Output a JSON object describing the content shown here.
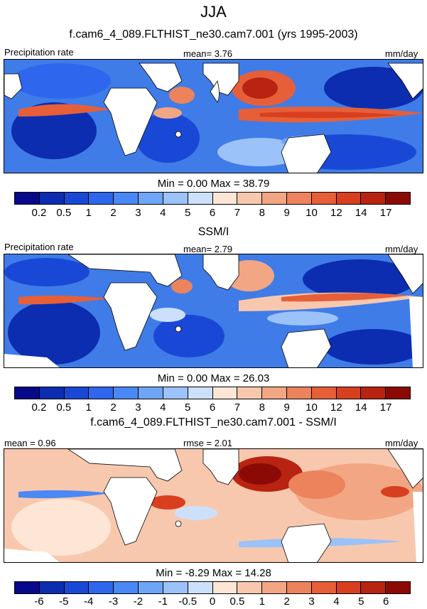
{
  "figure": {
    "title": "JJA"
  },
  "panels": [
    {
      "id": "model",
      "title": "f.cam6_4_089.FLTHIST_ne30.cam7.001 (yrs 1995-2003)",
      "left_label": "Precipitation rate",
      "center_label": "mean=   3.76",
      "right_label": "mm/day",
      "minmax": "Min =   0.00 Max =  38.79",
      "colorbar_colors": [
        "#08088a",
        "#0c2db0",
        "#1a48d6",
        "#2e67ee",
        "#4a88f5",
        "#6fa5f7",
        "#9bc2f9",
        "#cde0fb",
        "#fde6d6",
        "#f8c8ae",
        "#f2a683",
        "#ec835c",
        "#e65f39",
        "#d83f1e",
        "#b82411",
        "#8c0a05"
      ],
      "colorbar_labels": [
        "0.2",
        "0.5",
        "1",
        "2",
        "3",
        "4",
        "5",
        "6",
        "7",
        "8",
        "9",
        "10",
        "12",
        "14",
        "17"
      ]
    },
    {
      "id": "obs",
      "title": "SSM/I",
      "left_label": "Precipitation rate",
      "center_label": "mean=   2.79",
      "right_label": "mm/day",
      "minmax": "Min =   0.00 Max =  26.03",
      "colorbar_colors": [
        "#08088a",
        "#0c2db0",
        "#1a48d6",
        "#2e67ee",
        "#4a88f5",
        "#6fa5f7",
        "#9bc2f9",
        "#cde0fb",
        "#fde6d6",
        "#f8c8ae",
        "#f2a683",
        "#ec835c",
        "#e65f39",
        "#d83f1e",
        "#b82411",
        "#8c0a05"
      ],
      "colorbar_labels": [
        "0.2",
        "0.5",
        "1",
        "2",
        "3",
        "4",
        "5",
        "6",
        "7",
        "8",
        "9",
        "10",
        "12",
        "14",
        "17"
      ]
    },
    {
      "id": "diff",
      "title": "f.cam6_4_089.FLTHIST_ne30.cam7.001 - SSM/I",
      "left_label": "mean =   0.96",
      "center_label": "rmse =   2.01",
      "right_label": "mm/day",
      "minmax": "Min =  -8.29 Max =  14.28",
      "colorbar_colors": [
        "#08088a",
        "#0c2db0",
        "#1a48d6",
        "#2e67ee",
        "#4a88f5",
        "#6fa5f7",
        "#9bc2f9",
        "#cde0fb",
        "#fde6d6",
        "#f8c8ae",
        "#f2a683",
        "#ec835c",
        "#e65f39",
        "#d83f1e",
        "#b82411",
        "#8c0a05"
      ],
      "colorbar_labels": [
        "-6",
        "-5",
        "-4",
        "-3",
        "-2",
        "-1",
        "-0.5",
        "0",
        "0.5",
        "1",
        "2",
        "3",
        "4",
        "5",
        "6"
      ]
    }
  ],
  "chart_data": [
    {
      "type": "heatmap",
      "title": "f.cam6_4_089.FLTHIST_ne30.cam7.001 (yrs 1995-2003)",
      "units": "mm/day",
      "mean": 3.76,
      "min": 0.0,
      "max": 38.79
    },
    {
      "type": "heatmap",
      "title": "SSM/I",
      "units": "mm/day",
      "mean": 2.79,
      "min": 0.0,
      "max": 26.03
    },
    {
      "type": "heatmap",
      "title": "f.cam6_4_089.FLTHIST_ne30.cam7.001 - SSM/I",
      "units": "mm/day",
      "mean": 0.96,
      "rmse": 2.01,
      "min": -8.29,
      "max": 14.28
    }
  ]
}
